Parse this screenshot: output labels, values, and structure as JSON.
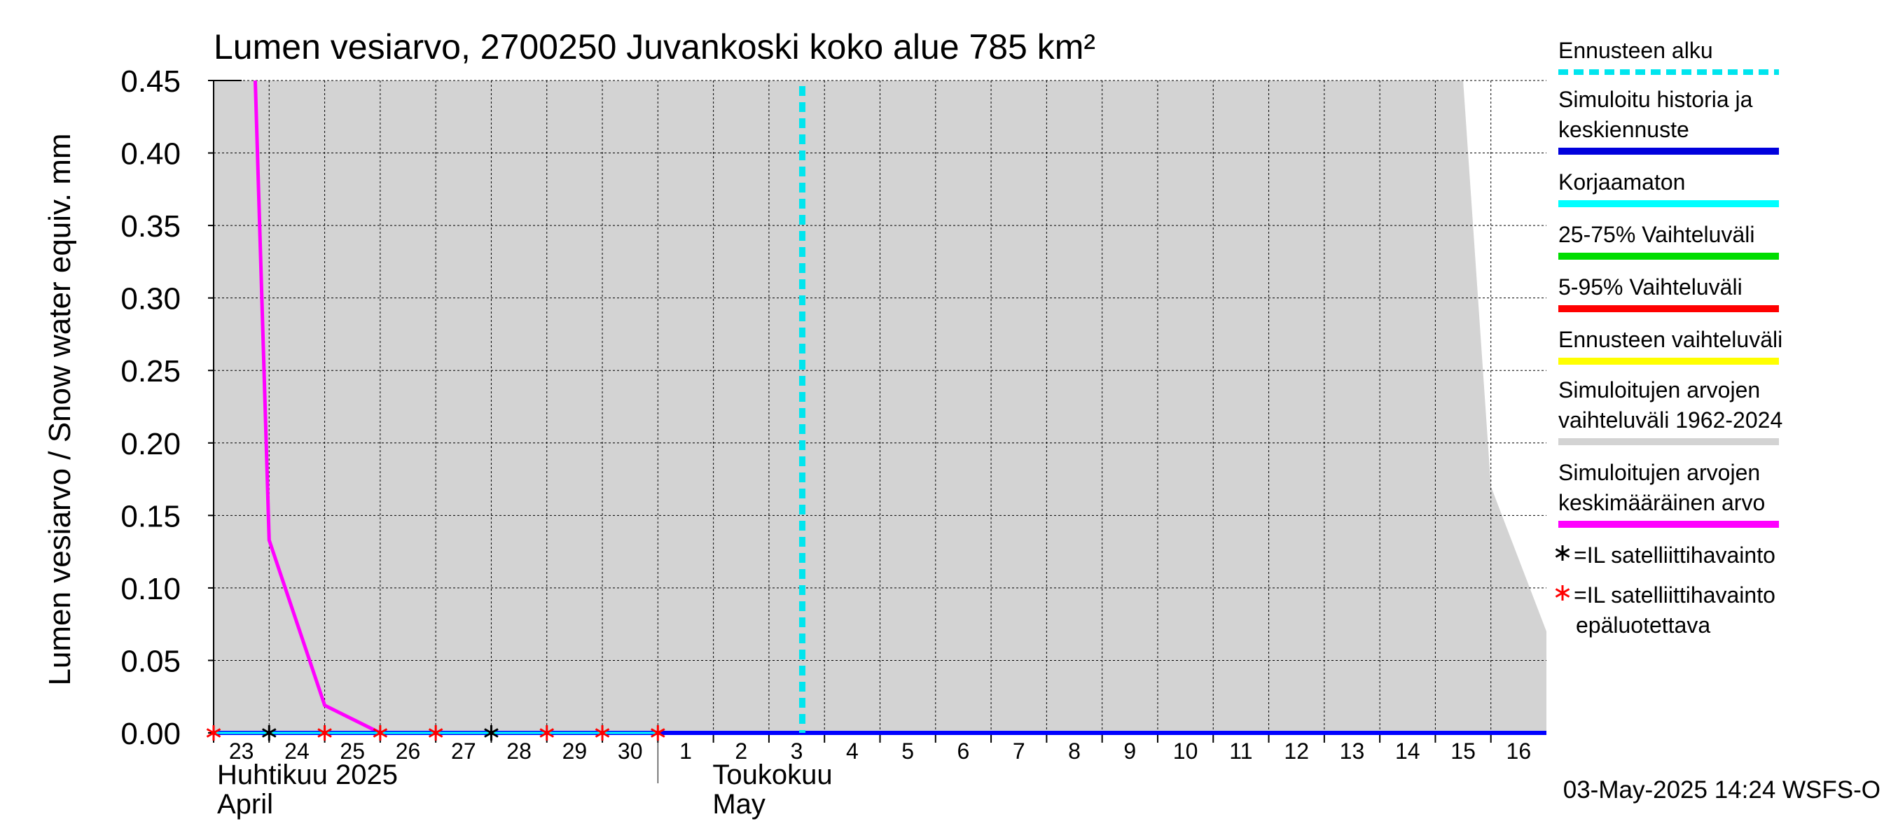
{
  "chart_data": {
    "type": "line",
    "title": "Lumen vesiarvo, 2700250 Juvankoski koko alue 785 km²",
    "ylabel": "Lumen vesiarvo / Snow water equiv.    mm",
    "ylim": [
      0,
      0.45
    ],
    "yticks": [
      "0.00",
      "0.05",
      "0.10",
      "0.15",
      "0.20",
      "0.25",
      "0.30",
      "0.35",
      "0.40",
      "0.45"
    ],
    "x_start": "2025-04-23",
    "x_end": "2025-05-17",
    "xticks": [
      {
        "date": "2025-04-23",
        "label": "23"
      },
      {
        "date": "2025-04-24",
        "label": "24"
      },
      {
        "date": "2025-04-25",
        "label": "25"
      },
      {
        "date": "2025-04-26",
        "label": "26"
      },
      {
        "date": "2025-04-27",
        "label": "27"
      },
      {
        "date": "2025-04-28",
        "label": "28"
      },
      {
        "date": "2025-04-29",
        "label": "29"
      },
      {
        "date": "2025-04-30",
        "label": "30"
      },
      {
        "date": "2025-05-01",
        "label": "1"
      },
      {
        "date": "2025-05-02",
        "label": "2"
      },
      {
        "date": "2025-05-03",
        "label": "3"
      },
      {
        "date": "2025-05-04",
        "label": "4"
      },
      {
        "date": "2025-05-05",
        "label": "5"
      },
      {
        "date": "2025-05-06",
        "label": "6"
      },
      {
        "date": "2025-05-07",
        "label": "7"
      },
      {
        "date": "2025-05-08",
        "label": "8"
      },
      {
        "date": "2025-05-09",
        "label": "9"
      },
      {
        "date": "2025-05-10",
        "label": "10"
      },
      {
        "date": "2025-05-11",
        "label": "11"
      },
      {
        "date": "2025-05-12",
        "label": "12"
      },
      {
        "date": "2025-05-13",
        "label": "13"
      },
      {
        "date": "2025-05-14",
        "label": "14"
      },
      {
        "date": "2025-05-15",
        "label": "15"
      },
      {
        "date": "2025-05-16",
        "label": "16"
      }
    ],
    "month_labels": [
      {
        "date": "2025-04-23",
        "fi": "Huhtikuu  2025",
        "en": "April"
      },
      {
        "date": "2025-05-01",
        "fi": "Toukokuu",
        "en": "May"
      }
    ],
    "forecast_start": "2025-05-03",
    "historical_range_1962_2024": {
      "x": [
        "2025-04-23",
        "2025-05-15 12:00",
        "2025-05-16",
        "2025-05-17"
      ],
      "y": [
        0.45,
        0.45,
        0.17,
        0.07
      ]
    },
    "series": [
      {
        "name": "Simuloitujen arvojen keskimääräinen arvo",
        "color": "#ff00ff",
        "x": [
          "2025-04-23 18:00",
          "2025-04-24",
          "2025-04-25",
          "2025-04-26",
          "2025-05-17"
        ],
        "y": [
          0.45,
          0.133,
          0.019,
          0.0,
          0.0
        ]
      },
      {
        "name": "Simuloitu historia ja keskiennuste",
        "color": "#0000ff",
        "x": [
          "2025-04-23",
          "2025-05-17"
        ],
        "y": [
          0.0,
          0.0
        ]
      },
      {
        "name": "Korjaamaton",
        "color": "#00ffff",
        "x": [
          "2025-04-23",
          "2025-05-01"
        ],
        "y": [
          0.0,
          0.0
        ]
      }
    ],
    "satellite_obs": {
      "x": [
        "2025-04-24",
        "2025-04-28"
      ],
      "y": [
        0.0,
        0.0
      ]
    },
    "satellite_obs_unreliable": {
      "x": [
        "2025-04-23",
        "2025-04-25",
        "2025-04-26",
        "2025-04-27",
        "2025-04-29",
        "2025-04-30",
        "2025-05-01"
      ],
      "y": [
        0.0,
        0.0,
        0.0,
        0.0,
        0.0,
        0.0,
        0.0
      ]
    },
    "legend": {
      "placement": "right",
      "items": [
        {
          "lines": [
            "Ennusteen alku"
          ],
          "color": "#00e5ee",
          "style": "dashed"
        },
        {
          "lines": [
            "Simuloitu historia ja",
            "keskiennuste"
          ],
          "color": "#0000dd",
          "style": "solid"
        },
        {
          "lines": [
            "Korjaamaton"
          ],
          "color": "#00ffff",
          "style": "solid"
        },
        {
          "lines": [
            "25-75% Vaihteluväli"
          ],
          "color": "#00dd00",
          "style": "solid"
        },
        {
          "lines": [
            "5-95% Vaihteluväli"
          ],
          "color": "#ff0000",
          "style": "solid"
        },
        {
          "lines": [
            "Ennusteen vaihteluväli"
          ],
          "color": "#ffff00",
          "style": "solid"
        },
        {
          "lines": [
            "Simuloitujen arvojen",
            "vaihteluväli 1962-2024"
          ],
          "color": "#d3d3d3",
          "style": "solid"
        },
        {
          "lines": [
            "Simuloitujen arvojen",
            "keskimääräinen arvo"
          ],
          "color": "#ff00ff",
          "style": "solid"
        },
        {
          "lines": [
            "=IL satelliittihavainto"
          ],
          "color": "#000000",
          "style": "marker"
        },
        {
          "lines": [
            "=IL satelliittihavainto",
            "epäluotettava"
          ],
          "color": "#ff0000",
          "style": "marker"
        }
      ]
    },
    "grid": true,
    "footer": "03-May-2025 14:24 WSFS-O"
  }
}
